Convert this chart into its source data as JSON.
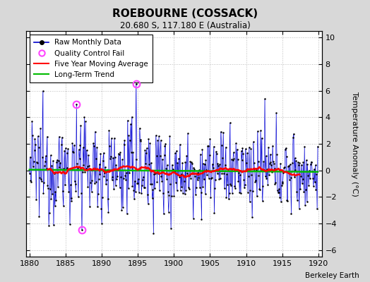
{
  "title": "ROEBOURNE (COSSACK)",
  "subtitle": "20.680 S, 117.180 E (Australia)",
  "ylabel": "Temperature Anomaly (°C)",
  "xlim": [
    1879.5,
    1920.5
  ],
  "ylim": [
    -6.5,
    10.5
  ],
  "yticks": [
    -6,
    -4,
    -2,
    0,
    2,
    4,
    6,
    8,
    10
  ],
  "xticks": [
    1880,
    1885,
    1890,
    1895,
    1900,
    1905,
    1910,
    1915,
    1920
  ],
  "fig_background": "#d8d8d8",
  "plot_background": "#ffffff",
  "attribution": "Berkeley Earth",
  "bar_color": "#aaaaff",
  "dot_color": "#000000",
  "line_color": "#0000cc",
  "ma_color": "#ff0000",
  "trend_color": "#00bb00",
  "qc_color": "#ff44ff",
  "seed": 12345
}
